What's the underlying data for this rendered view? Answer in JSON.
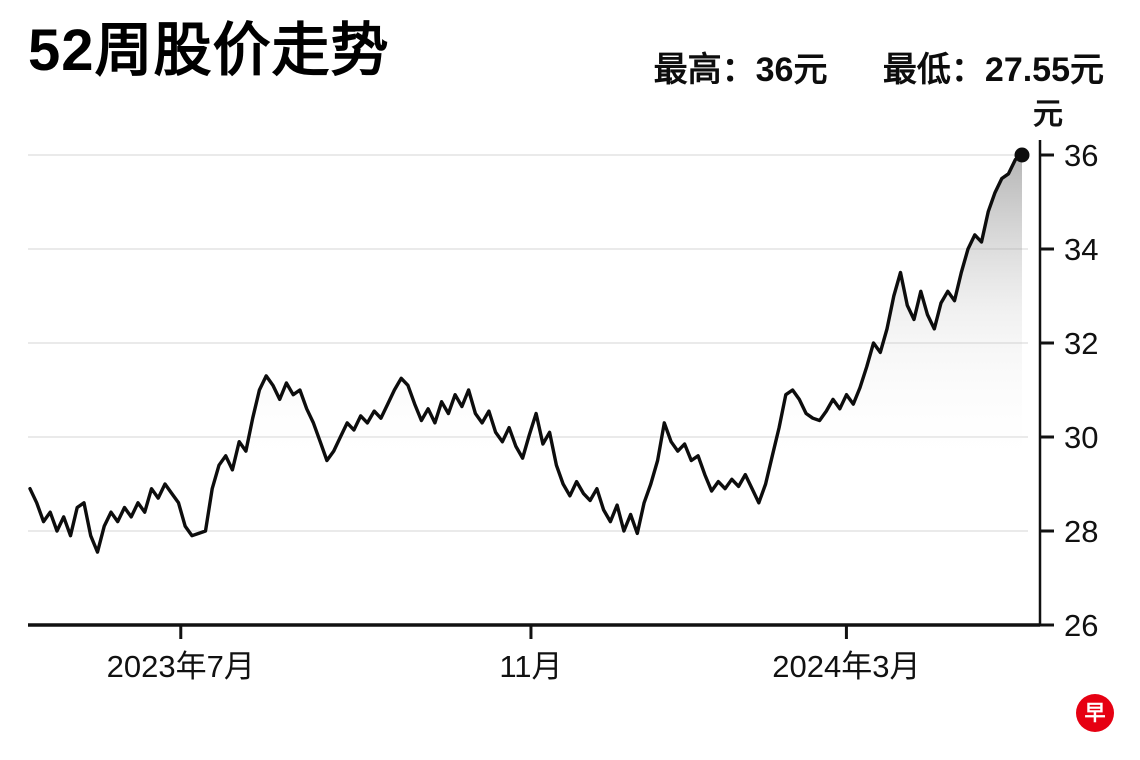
{
  "header": {
    "title": "52周股价走势",
    "high_label": "最高：36元",
    "low_label": "最低：27.55元"
  },
  "chart_data": {
    "type": "line",
    "title": "52周股价走势",
    "unit_label": "元",
    "high": 36,
    "low": 27.55,
    "ylim": [
      26,
      36
    ],
    "yticks": [
      26,
      28,
      30,
      32,
      34,
      36
    ],
    "grid_ticks": [
      28,
      30,
      32,
      34,
      36
    ],
    "line_color": "#0d0d0d",
    "grid_color": "#e4e4e4",
    "fill_top_color": "#808080",
    "xticks": [
      {
        "label": "2023年7月",
        "pos": 0.152
      },
      {
        "label": "11月",
        "pos": 0.505
      },
      {
        "label": "2024年3月",
        "pos": 0.823
      }
    ],
    "values": [
      28.9,
      28.6,
      28.2,
      28.4,
      28.0,
      28.3,
      27.9,
      28.5,
      28.6,
      27.9,
      27.55,
      28.1,
      28.4,
      28.2,
      28.5,
      28.3,
      28.6,
      28.4,
      28.9,
      28.7,
      29.0,
      28.8,
      28.6,
      28.1,
      27.9,
      27.95,
      28.0,
      28.9,
      29.4,
      29.6,
      29.3,
      29.9,
      29.7,
      30.4,
      31.0,
      31.3,
      31.1,
      30.8,
      31.15,
      30.9,
      31.0,
      30.6,
      30.3,
      29.9,
      29.5,
      29.7,
      30.0,
      30.3,
      30.15,
      30.45,
      30.3,
      30.55,
      30.4,
      30.7,
      31.0,
      31.25,
      31.1,
      30.7,
      30.35,
      30.6,
      30.3,
      30.75,
      30.5,
      30.9,
      30.65,
      31.0,
      30.5,
      30.3,
      30.55,
      30.1,
      29.9,
      30.2,
      29.8,
      29.55,
      30.05,
      30.5,
      29.85,
      30.1,
      29.4,
      29.0,
      28.75,
      29.05,
      28.8,
      28.65,
      28.9,
      28.45,
      28.2,
      28.55,
      28.0,
      28.35,
      27.95,
      28.6,
      29.0,
      29.5,
      30.3,
      29.9,
      29.7,
      29.85,
      29.5,
      29.6,
      29.2,
      28.85,
      29.05,
      28.9,
      29.1,
      28.95,
      29.2,
      28.9,
      28.6,
      29.0,
      29.6,
      30.2,
      30.9,
      31.0,
      30.8,
      30.5,
      30.4,
      30.35,
      30.55,
      30.8,
      30.6,
      30.9,
      30.7,
      31.05,
      31.5,
      32.0,
      31.8,
      32.3,
      33.0,
      33.5,
      32.8,
      32.5,
      33.1,
      32.6,
      32.3,
      32.85,
      33.1,
      32.9,
      33.5,
      34.0,
      34.3,
      34.15,
      34.8,
      35.2,
      35.5,
      35.6,
      35.9,
      36.0
    ]
  },
  "logo": {
    "text": "早",
    "color": "#e60012"
  }
}
